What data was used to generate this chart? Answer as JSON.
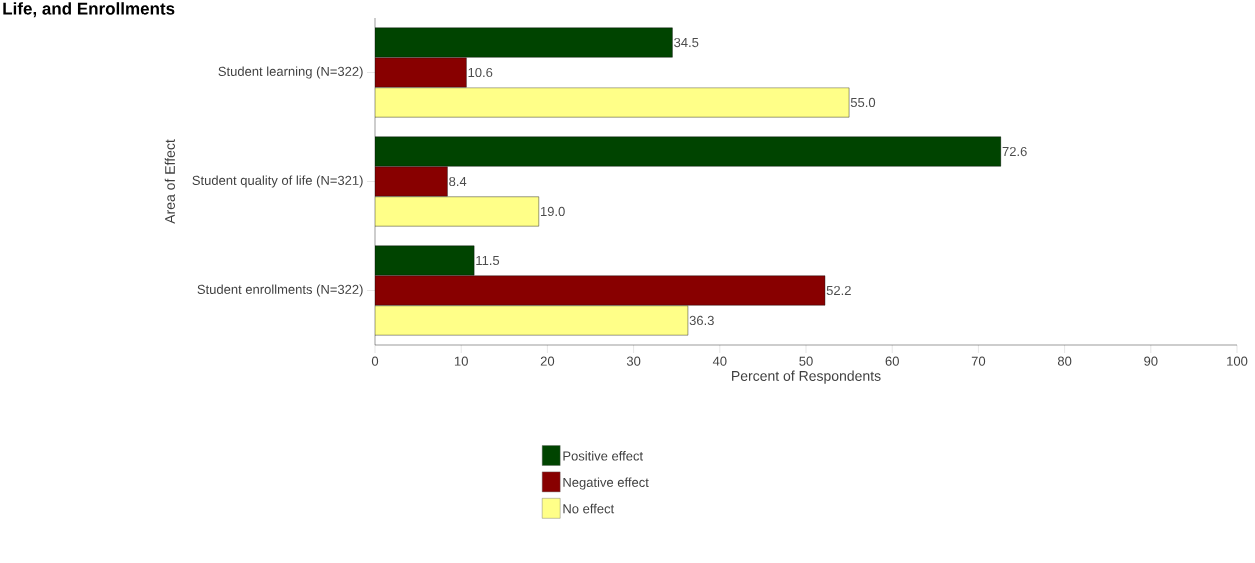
{
  "chart_data": {
    "type": "bar",
    "orientation": "horizontal",
    "title": "Life, and Enrollments",
    "xlabel": "Percent of Respondents",
    "ylabel": "Area of Effect",
    "categories": [
      "Student learning (N=322)",
      "Student quality of life (N=321)",
      "Student enrollments (N=322)"
    ],
    "series": [
      {
        "name": "Positive effect",
        "color": "#004400",
        "values": [
          34.5,
          72.6,
          11.5
        ],
        "value_labels": [
          "34.5",
          "72.6",
          "11.5"
        ]
      },
      {
        "name": "Negative effect",
        "color": "#880000",
        "values": [
          10.6,
          8.4,
          52.2
        ],
        "value_labels": [
          "10.6",
          "8.4",
          "52.2"
        ]
      },
      {
        "name": "No effect",
        "color": "#ffff88",
        "values": [
          55.0,
          19.0,
          36.3
        ],
        "value_labels": [
          "55.0",
          "19.0",
          "36.3"
        ]
      }
    ],
    "xlim": [
      0,
      100
    ],
    "xticks": [
      0,
      10,
      20,
      30,
      40,
      50,
      60,
      70,
      80,
      90,
      100
    ],
    "grid": false,
    "legend": "bottom"
  }
}
